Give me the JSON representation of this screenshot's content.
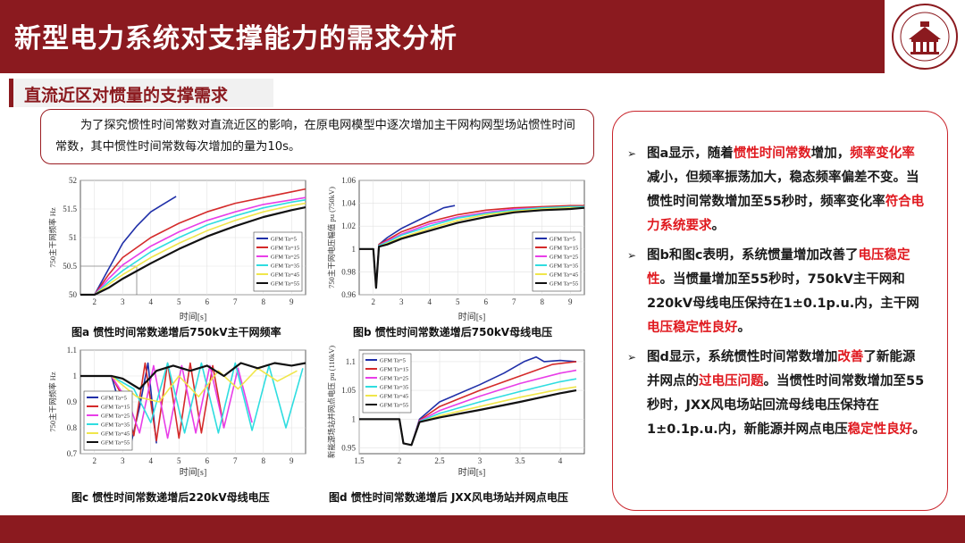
{
  "title": "新型电力系统对支撑能力的需求分析",
  "section": {
    "title": "直流近区对惯量的支撑需求"
  },
  "intro": "为了探究惯性时间常数对直流近区的影响，在原电网模型中逐次增加主干网构网型场站惯性时间常数，其中惯性时间常数每次增加的量为10s。",
  "colors": {
    "brand": "#8b1a1f",
    "highlight": "#e0191f",
    "box_border": "#c9242b"
  },
  "legend_series": [
    "GFM Ta=5",
    "GFM Ta=15",
    "GFM Ta=25",
    "GFM Ta=35",
    "GFM Ta=45",
    "GFM Ta=55"
  ],
  "series_colors": [
    "#1f2fa8",
    "#d42a2a",
    "#e83ee8",
    "#2fdde0",
    "#f0e64a",
    "#111111"
  ],
  "bullets": [
    [
      {
        "t": "图a显示，随着"
      },
      {
        "t": "惯性时间常数",
        "hl": true
      },
      {
        "t": "增加，"
      },
      {
        "t": "频率变化率",
        "hl": true
      },
      {
        "t": "减小，但频率振荡加大，稳态频率偏差不变。当惯性时间常数增加至55秒时，频率变化率"
      },
      {
        "t": "符合电力系统要求",
        "hl": true
      },
      {
        "t": "。"
      }
    ],
    [
      {
        "t": "图b和图c表明，系统惯量增加改善了"
      },
      {
        "t": "电压稳定性",
        "hl": true
      },
      {
        "t": "。当惯量增加至55秒时，750kV主干网和220kV母线电压保持在1±0.1p.u.内，主干网"
      },
      {
        "t": "电压稳定性良好",
        "hl": true
      },
      {
        "t": "。"
      }
    ],
    [
      {
        "t": "图d显示，系统惯性时间常数增加"
      },
      {
        "t": "改善",
        "hl": true
      },
      {
        "t": "了新能源并网点的"
      },
      {
        "t": "过电压问题",
        "hl": true
      },
      {
        "t": "。当惯性时间常数增加至55秒时，JXX风电场站回流母线电压保持在1±0.1p.u.内，新能源并网点电压"
      },
      {
        "t": "稳定性良好",
        "hl": true
      },
      {
        "t": "。"
      }
    ]
  ],
  "chart_data": [
    {
      "id": "a",
      "type": "line",
      "caption": "图a 惯性时间常数递增后750kV主干网频率",
      "xlabel": "时间[s]",
      "ylabel": "750主干网频率 Hz",
      "xlim": [
        1.5,
        9.5
      ],
      "ylim": [
        50,
        52
      ],
      "xticks": [
        2,
        3,
        4,
        5,
        6,
        7,
        8,
        9
      ],
      "yticks": [
        50,
        50.5,
        51,
        51.5,
        52
      ],
      "ytick_labels": [
        "50",
        "50.5",
        "51",
        "51.5",
        "52"
      ],
      "legend_position": "lower-right",
      "annotation": {
        "x": 3.5,
        "y": 50.5
      },
      "series": [
        {
          "name": "GFM Ta=5",
          "x": [
            1.5,
            2.0,
            2.5,
            3.0,
            3.5,
            4.0,
            4.5,
            4.9
          ],
          "y": [
            50,
            50,
            50.45,
            50.9,
            51.2,
            51.45,
            51.6,
            51.72
          ]
        },
        {
          "name": "GFM Ta=15",
          "x": [
            1.5,
            2.0,
            2.5,
            3.0,
            4.0,
            5.0,
            6.0,
            7.0,
            8.0,
            9.0,
            9.5
          ],
          "y": [
            50,
            50,
            50.35,
            50.65,
            51.0,
            51.25,
            51.45,
            51.6,
            51.7,
            51.8,
            51.85
          ]
        },
        {
          "name": "GFM Ta=25",
          "x": [
            1.5,
            2.0,
            2.5,
            3.0,
            4.0,
            5.0,
            6.0,
            7.0,
            8.0,
            9.0,
            9.5
          ],
          "y": [
            50,
            50,
            50.28,
            50.52,
            50.85,
            51.1,
            51.3,
            51.45,
            51.58,
            51.66,
            51.7
          ]
        },
        {
          "name": "GFM Ta=35",
          "x": [
            1.5,
            2.0,
            2.5,
            3.0,
            4.0,
            5.0,
            6.0,
            7.0,
            8.0,
            9.0,
            9.5
          ],
          "y": [
            50,
            50,
            50.22,
            50.42,
            50.75,
            51.0,
            51.22,
            51.38,
            51.52,
            51.62,
            51.66
          ]
        },
        {
          "name": "GFM Ta=45",
          "x": [
            1.5,
            2.0,
            2.5,
            3.0,
            4.0,
            5.0,
            6.0,
            7.0,
            8.0,
            9.0,
            9.5
          ],
          "y": [
            50,
            50,
            50.18,
            50.35,
            50.65,
            50.9,
            51.12,
            51.3,
            51.45,
            51.56,
            51.6
          ]
        },
        {
          "name": "GFM Ta=55",
          "x": [
            1.5,
            2.0,
            2.5,
            3.0,
            4.0,
            5.0,
            6.0,
            7.0,
            8.0,
            9.0,
            9.5
          ],
          "y": [
            50,
            50,
            50.12,
            50.28,
            50.55,
            50.8,
            51.02,
            51.2,
            51.36,
            51.48,
            51.53
          ]
        }
      ]
    },
    {
      "id": "b",
      "type": "line",
      "caption": "图b 惯性时间常数递增后750kV母线电压",
      "xlabel": "时间[s]",
      "ylabel": "750主干网电压幅值 pu (750kV)",
      "xlim": [
        1.5,
        9.5
      ],
      "ylim": [
        0.96,
        1.06
      ],
      "xticks": [
        2,
        3,
        4,
        5,
        6,
        7,
        8,
        9
      ],
      "yticks": [
        0.96,
        0.98,
        1,
        1.02,
        1.04,
        1.06
      ],
      "ytick_labels": [
        "0.96",
        "0.98",
        "1",
        "1.02",
        "1.04",
        "1.06"
      ],
      "legend_position": "lower-right",
      "series": [
        {
          "name": "GFM Ta=5",
          "x": [
            1.5,
            2.0,
            2.1,
            2.2,
            2.5,
            3.0,
            3.5,
            4.0,
            4.5,
            4.9
          ],
          "y": [
            1.0,
            1.0,
            0.966,
            1.004,
            1.01,
            1.018,
            1.024,
            1.03,
            1.036,
            1.038
          ]
        },
        {
          "name": "GFM Ta=15",
          "x": [
            1.5,
            2.0,
            2.1,
            2.2,
            2.5,
            3.0,
            4.0,
            5.0,
            6.0,
            7.0,
            8.0,
            9.0,
            9.5
          ],
          "y": [
            1.0,
            1.0,
            0.966,
            1.004,
            1.008,
            1.015,
            1.024,
            1.03,
            1.034,
            1.036,
            1.037,
            1.038,
            1.038
          ]
        },
        {
          "name": "GFM Ta=25",
          "x": [
            1.5,
            2.0,
            2.1,
            2.2,
            2.5,
            3.0,
            4.0,
            5.0,
            6.0,
            7.0,
            8.0,
            9.0,
            9.5
          ],
          "y": [
            1.0,
            1.0,
            0.966,
            1.003,
            1.007,
            1.013,
            1.022,
            1.028,
            1.032,
            1.035,
            1.036,
            1.037,
            1.037
          ]
        },
        {
          "name": "GFM Ta=35",
          "x": [
            1.5,
            2.0,
            2.1,
            2.2,
            2.5,
            3.0,
            4.0,
            5.0,
            6.0,
            7.0,
            8.0,
            9.0,
            9.5
          ],
          "y": [
            1.0,
            1.0,
            0.966,
            1.003,
            1.006,
            1.012,
            1.02,
            1.027,
            1.031,
            1.034,
            1.036,
            1.037,
            1.037
          ]
        },
        {
          "name": "GFM Ta=45",
          "x": [
            1.5,
            2.0,
            2.1,
            2.2,
            2.5,
            3.0,
            4.0,
            5.0,
            6.0,
            7.0,
            8.0,
            9.0,
            9.5
          ],
          "y": [
            1.0,
            1.0,
            0.966,
            1.002,
            1.005,
            1.01,
            1.018,
            1.025,
            1.03,
            1.033,
            1.035,
            1.036,
            1.036
          ]
        },
        {
          "name": "GFM Ta=55",
          "x": [
            1.5,
            2.0,
            2.1,
            2.2,
            2.5,
            3.0,
            4.0,
            5.0,
            6.0,
            7.0,
            8.0,
            9.0,
            9.5
          ],
          "y": [
            1.0,
            1.0,
            0.966,
            1.002,
            1.004,
            1.009,
            1.016,
            1.023,
            1.028,
            1.032,
            1.034,
            1.035,
            1.036
          ]
        }
      ]
    },
    {
      "id": "c",
      "type": "line",
      "caption": "图c 惯性时间常数递增后220kV母线电压",
      "xlabel": "时间[s]",
      "ylabel": "750主干网频率 Hz",
      "xlim": [
        1.5,
        9.5
      ],
      "ylim": [
        0.7,
        1.1
      ],
      "xticks": [
        2,
        3,
        4,
        5,
        6,
        7,
        8,
        9
      ],
      "yticks": [
        0.7,
        0.8,
        0.9,
        1,
        1.1
      ],
      "ytick_labels": [
        "0.7",
        "0.8",
        "0.9",
        "1",
        "1.1"
      ],
      "legend_position": "lower-left",
      "series": [
        {
          "name": "GFM Ta=5",
          "x": [
            1.5,
            2.0,
            2.6,
            3.0,
            3.3,
            3.6,
            3.9,
            4.2
          ],
          "y": [
            1.0,
            1.0,
            1.0,
            0.85,
            0.74,
            0.88,
            1.05,
            0.74
          ]
        },
        {
          "name": "GFM Ta=15",
          "x": [
            1.5,
            2.0,
            2.6,
            3.0,
            3.4,
            3.8,
            4.2,
            4.6,
            5.0,
            5.4,
            5.8,
            6.2,
            6.6
          ],
          "y": [
            1.0,
            1.0,
            1.0,
            0.92,
            0.77,
            1.05,
            0.75,
            1.05,
            0.76,
            1.05,
            0.78,
            1.04,
            0.8
          ]
        },
        {
          "name": "GFM Ta=25",
          "x": [
            1.5,
            2.0,
            2.6,
            3.2,
            3.6,
            4.1,
            4.6,
            5.1,
            5.6,
            6.1,
            6.6,
            7.1,
            7.6
          ],
          "y": [
            1.0,
            1.0,
            1.0,
            0.9,
            0.78,
            1.04,
            0.76,
            1.04,
            0.78,
            1.04,
            0.8,
            1.03,
            0.82
          ]
        },
        {
          "name": "GFM Ta=35",
          "x": [
            1.5,
            2.0,
            2.6,
            3.4,
            4.0,
            4.6,
            5.2,
            5.8,
            6.4,
            7.0,
            7.6,
            8.2,
            8.8,
            9.4
          ],
          "y": [
            1.0,
            1.0,
            1.0,
            0.95,
            0.82,
            1.05,
            0.78,
            1.05,
            0.78,
            1.05,
            0.79,
            1.04,
            0.8,
            1.03
          ]
        },
        {
          "name": "GFM Ta=45",
          "x": [
            1.5,
            2.0,
            2.6,
            3.5,
            4.3,
            5.0,
            5.7,
            6.4,
            7.1,
            7.8,
            8.5,
            9.2
          ],
          "y": [
            1.0,
            1.0,
            1.0,
            0.92,
            0.9,
            1.0,
            0.92,
            1.02,
            0.95,
            1.03,
            0.98,
            1.02
          ]
        },
        {
          "name": "GFM Ta=55",
          "x": [
            1.5,
            2.0,
            2.6,
            3.0,
            3.6,
            4.2,
            4.8,
            5.4,
            6.0,
            6.6,
            7.2,
            7.8,
            8.4,
            9.0,
            9.5
          ],
          "y": [
            1.0,
            1.0,
            1.0,
            0.99,
            0.95,
            1.02,
            1.04,
            1.02,
            1.04,
            1.0,
            1.05,
            1.03,
            1.05,
            1.04,
            1.05
          ]
        }
      ]
    },
    {
      "id": "d",
      "type": "line",
      "caption": "图d 惯性时间常数递增后 JXX风电场站并网点电压",
      "xlabel": "时间[s]",
      "ylabel": "新能源场站并网点电压 pu (110kV)",
      "xlim": [
        1.5,
        4.3
      ],
      "ylim": [
        0.94,
        1.12
      ],
      "xticks": [
        1.5,
        2,
        2.5,
        3,
        3.5,
        4
      ],
      "yticks": [
        0.95,
        1,
        1.05,
        1.1
      ],
      "ytick_labels": [
        "0.95",
        "1",
        "1.05",
        "1.1"
      ],
      "legend_position": "top-left",
      "series": [
        {
          "name": "GFM Ta=5",
          "x": [
            1.5,
            2.0,
            2.05,
            2.15,
            2.25,
            2.5,
            3.0,
            3.3,
            3.55,
            3.7,
            3.8,
            4.0,
            4.2
          ],
          "y": [
            1.0,
            1.0,
            0.958,
            0.955,
            1.0,
            1.03,
            1.06,
            1.08,
            1.1,
            1.108,
            1.1,
            1.102,
            1.1
          ]
        },
        {
          "name": "GFM Ta=15",
          "x": [
            1.5,
            2.0,
            2.05,
            2.15,
            2.25,
            2.5,
            3.0,
            3.5,
            3.9,
            4.2
          ],
          "y": [
            1.0,
            1.0,
            0.958,
            0.955,
            0.998,
            1.022,
            1.05,
            1.075,
            1.095,
            1.1
          ]
        },
        {
          "name": "GFM Ta=25",
          "x": [
            1.5,
            2.0,
            2.05,
            2.15,
            2.25,
            2.5,
            3.0,
            3.5,
            4.0,
            4.2
          ],
          "y": [
            1.0,
            1.0,
            0.958,
            0.955,
            0.997,
            1.015,
            1.04,
            1.062,
            1.08,
            1.085
          ]
        },
        {
          "name": "GFM Ta=35",
          "x": [
            1.5,
            2.0,
            2.05,
            2.15,
            2.25,
            2.5,
            3.0,
            3.5,
            4.0,
            4.2
          ],
          "y": [
            1.0,
            1.0,
            0.958,
            0.955,
            0.996,
            1.01,
            1.03,
            1.048,
            1.065,
            1.07
          ]
        },
        {
          "name": "GFM Ta=45",
          "x": [
            1.5,
            2.0,
            2.05,
            2.15,
            2.25,
            2.5,
            3.0,
            3.5,
            4.0,
            4.2
          ],
          "y": [
            1.0,
            1.0,
            0.958,
            0.955,
            0.995,
            1.006,
            1.022,
            1.038,
            1.052,
            1.056
          ]
        },
        {
          "name": "GFM Ta=55",
          "x": [
            1.5,
            2.0,
            2.05,
            2.15,
            2.25,
            2.5,
            3.0,
            3.5,
            4.0,
            4.2
          ],
          "y": [
            1.0,
            1.0,
            0.958,
            0.955,
            0.995,
            1.003,
            1.016,
            1.03,
            1.045,
            1.05
          ]
        }
      ]
    }
  ]
}
